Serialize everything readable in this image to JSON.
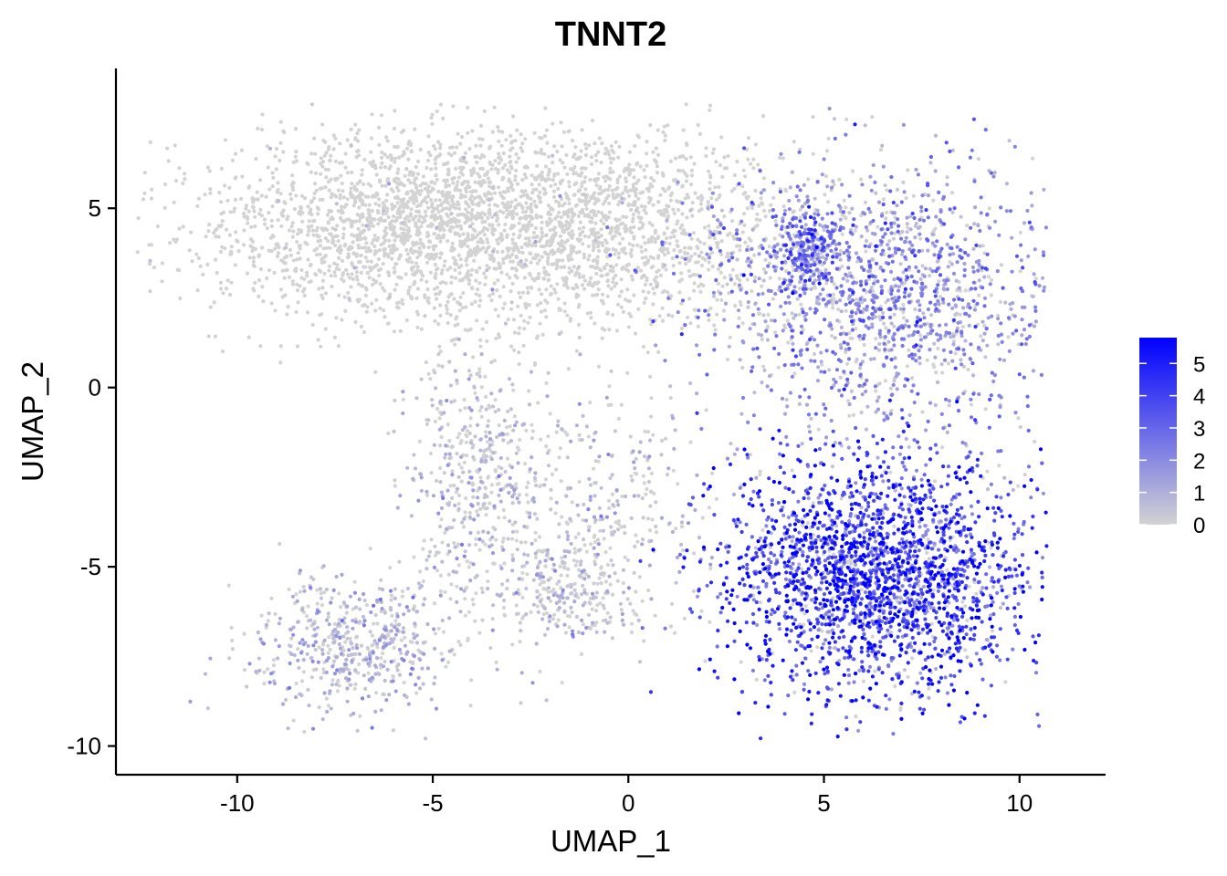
{
  "chart_data": {
    "type": "scatter",
    "title": "TNNT2",
    "xlabel": "UMAP_1",
    "ylabel": "UMAP_2",
    "xlim": [
      -13.1,
      12.2
    ],
    "ylim": [
      -10.8,
      8.9
    ],
    "x_ticks": [
      -10,
      -5,
      0,
      5,
      10
    ],
    "x_tick_labels": [
      "-10",
      "-5",
      "0",
      "5",
      "10"
    ],
    "y_ticks": [
      -10,
      -5,
      0,
      5
    ],
    "y_tick_labels": [
      "-10",
      "-5",
      "0",
      "5"
    ],
    "grid": false,
    "color_scale": {
      "low_color": "#d3d3d3",
      "high_color": "#0000ff",
      "min": 0,
      "max": 5.8,
      "ticks": [
        0,
        1,
        2,
        3,
        4,
        5
      ],
      "tick_labels": [
        "0",
        "1",
        "2",
        "3",
        "4",
        "5"
      ],
      "legend_position": "right"
    },
    "regions": [
      {
        "name": "upper-left-arm",
        "center": [
          -5.5,
          4.6
        ],
        "spread": [
          2.9,
          1.3
        ],
        "expression_mean": 0.05,
        "share": 0.23
      },
      {
        "name": "upper-middle",
        "center": [
          -0.5,
          4.5
        ],
        "spread": [
          2.6,
          1.4
        ],
        "expression_mean": 0.05,
        "share": 0.13
      },
      {
        "name": "left-branch",
        "center": [
          -3.8,
          -2.5
        ],
        "spread": [
          0.9,
          2.0
        ],
        "expression_mean": 0.35,
        "share": 0.06
      },
      {
        "name": "lower-left-blob",
        "center": [
          -7.0,
          -7.2
        ],
        "spread": [
          1.3,
          1.0
        ],
        "expression_mean": 0.6,
        "share": 0.06
      },
      {
        "name": "thin-strand",
        "center": [
          -0.3,
          -3.0
        ],
        "spread": [
          1.2,
          1.6
        ],
        "expression_mean": 0.3,
        "share": 0.025
      },
      {
        "name": "small-lower-cluster",
        "center": [
          -1.4,
          -5.5
        ],
        "spread": [
          0.9,
          0.9
        ],
        "expression_mean": 0.3,
        "share": 0.03
      },
      {
        "name": "right-upper",
        "center": [
          6.5,
          2.5
        ],
        "spread": [
          2.4,
          1.9
        ],
        "expression_mean": 1.8,
        "share": 0.17
      },
      {
        "name": "right-lower",
        "center": [
          6.4,
          -5.2
        ],
        "spread": [
          2.0,
          1.6
        ],
        "expression_mean": 4.0,
        "share": 0.27
      },
      {
        "name": "right-hot-spot",
        "center": [
          4.6,
          3.8
        ],
        "spread": [
          0.4,
          0.6
        ],
        "expression_mean": 2.6,
        "share": 0.025
      }
    ]
  }
}
